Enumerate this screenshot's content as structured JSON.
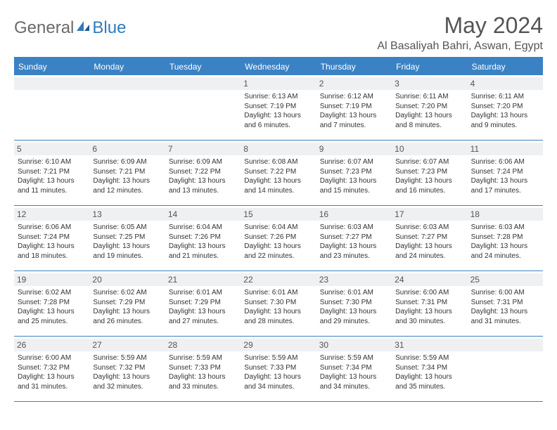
{
  "logo": {
    "part1": "General",
    "part2": "Blue"
  },
  "title": "May 2024",
  "location": "Al Basaliyah Bahri, Aswan, Egypt",
  "colors": {
    "header_bg": "#3b82c4",
    "header_text": "#ffffff",
    "daynum_bg": "#eef0f2",
    "text": "#333333",
    "logo_gray": "#6b6b6b",
    "logo_blue": "#2f7bbf"
  },
  "dow": [
    "Sunday",
    "Monday",
    "Tuesday",
    "Wednesday",
    "Thursday",
    "Friday",
    "Saturday"
  ],
  "weeks": [
    [
      {
        "n": "",
        "sr": "",
        "ss": "",
        "dl": ""
      },
      {
        "n": "",
        "sr": "",
        "ss": "",
        "dl": ""
      },
      {
        "n": "",
        "sr": "",
        "ss": "",
        "dl": ""
      },
      {
        "n": "1",
        "sr": "Sunrise: 6:13 AM",
        "ss": "Sunset: 7:19 PM",
        "dl": "Daylight: 13 hours and 6 minutes."
      },
      {
        "n": "2",
        "sr": "Sunrise: 6:12 AM",
        "ss": "Sunset: 7:19 PM",
        "dl": "Daylight: 13 hours and 7 minutes."
      },
      {
        "n": "3",
        "sr": "Sunrise: 6:11 AM",
        "ss": "Sunset: 7:20 PM",
        "dl": "Daylight: 13 hours and 8 minutes."
      },
      {
        "n": "4",
        "sr": "Sunrise: 6:11 AM",
        "ss": "Sunset: 7:20 PM",
        "dl": "Daylight: 13 hours and 9 minutes."
      }
    ],
    [
      {
        "n": "5",
        "sr": "Sunrise: 6:10 AM",
        "ss": "Sunset: 7:21 PM",
        "dl": "Daylight: 13 hours and 11 minutes."
      },
      {
        "n": "6",
        "sr": "Sunrise: 6:09 AM",
        "ss": "Sunset: 7:21 PM",
        "dl": "Daylight: 13 hours and 12 minutes."
      },
      {
        "n": "7",
        "sr": "Sunrise: 6:09 AM",
        "ss": "Sunset: 7:22 PM",
        "dl": "Daylight: 13 hours and 13 minutes."
      },
      {
        "n": "8",
        "sr": "Sunrise: 6:08 AM",
        "ss": "Sunset: 7:22 PM",
        "dl": "Daylight: 13 hours and 14 minutes."
      },
      {
        "n": "9",
        "sr": "Sunrise: 6:07 AM",
        "ss": "Sunset: 7:23 PM",
        "dl": "Daylight: 13 hours and 15 minutes."
      },
      {
        "n": "10",
        "sr": "Sunrise: 6:07 AM",
        "ss": "Sunset: 7:23 PM",
        "dl": "Daylight: 13 hours and 16 minutes."
      },
      {
        "n": "11",
        "sr": "Sunrise: 6:06 AM",
        "ss": "Sunset: 7:24 PM",
        "dl": "Daylight: 13 hours and 17 minutes."
      }
    ],
    [
      {
        "n": "12",
        "sr": "Sunrise: 6:06 AM",
        "ss": "Sunset: 7:24 PM",
        "dl": "Daylight: 13 hours and 18 minutes."
      },
      {
        "n": "13",
        "sr": "Sunrise: 6:05 AM",
        "ss": "Sunset: 7:25 PM",
        "dl": "Daylight: 13 hours and 19 minutes."
      },
      {
        "n": "14",
        "sr": "Sunrise: 6:04 AM",
        "ss": "Sunset: 7:26 PM",
        "dl": "Daylight: 13 hours and 21 minutes."
      },
      {
        "n": "15",
        "sr": "Sunrise: 6:04 AM",
        "ss": "Sunset: 7:26 PM",
        "dl": "Daylight: 13 hours and 22 minutes."
      },
      {
        "n": "16",
        "sr": "Sunrise: 6:03 AM",
        "ss": "Sunset: 7:27 PM",
        "dl": "Daylight: 13 hours and 23 minutes."
      },
      {
        "n": "17",
        "sr": "Sunrise: 6:03 AM",
        "ss": "Sunset: 7:27 PM",
        "dl": "Daylight: 13 hours and 24 minutes."
      },
      {
        "n": "18",
        "sr": "Sunrise: 6:03 AM",
        "ss": "Sunset: 7:28 PM",
        "dl": "Daylight: 13 hours and 24 minutes."
      }
    ],
    [
      {
        "n": "19",
        "sr": "Sunrise: 6:02 AM",
        "ss": "Sunset: 7:28 PM",
        "dl": "Daylight: 13 hours and 25 minutes."
      },
      {
        "n": "20",
        "sr": "Sunrise: 6:02 AM",
        "ss": "Sunset: 7:29 PM",
        "dl": "Daylight: 13 hours and 26 minutes."
      },
      {
        "n": "21",
        "sr": "Sunrise: 6:01 AM",
        "ss": "Sunset: 7:29 PM",
        "dl": "Daylight: 13 hours and 27 minutes."
      },
      {
        "n": "22",
        "sr": "Sunrise: 6:01 AM",
        "ss": "Sunset: 7:30 PM",
        "dl": "Daylight: 13 hours and 28 minutes."
      },
      {
        "n": "23",
        "sr": "Sunrise: 6:01 AM",
        "ss": "Sunset: 7:30 PM",
        "dl": "Daylight: 13 hours and 29 minutes."
      },
      {
        "n": "24",
        "sr": "Sunrise: 6:00 AM",
        "ss": "Sunset: 7:31 PM",
        "dl": "Daylight: 13 hours and 30 minutes."
      },
      {
        "n": "25",
        "sr": "Sunrise: 6:00 AM",
        "ss": "Sunset: 7:31 PM",
        "dl": "Daylight: 13 hours and 31 minutes."
      }
    ],
    [
      {
        "n": "26",
        "sr": "Sunrise: 6:00 AM",
        "ss": "Sunset: 7:32 PM",
        "dl": "Daylight: 13 hours and 31 minutes."
      },
      {
        "n": "27",
        "sr": "Sunrise: 5:59 AM",
        "ss": "Sunset: 7:32 PM",
        "dl": "Daylight: 13 hours and 32 minutes."
      },
      {
        "n": "28",
        "sr": "Sunrise: 5:59 AM",
        "ss": "Sunset: 7:33 PM",
        "dl": "Daylight: 13 hours and 33 minutes."
      },
      {
        "n": "29",
        "sr": "Sunrise: 5:59 AM",
        "ss": "Sunset: 7:33 PM",
        "dl": "Daylight: 13 hours and 34 minutes."
      },
      {
        "n": "30",
        "sr": "Sunrise: 5:59 AM",
        "ss": "Sunset: 7:34 PM",
        "dl": "Daylight: 13 hours and 34 minutes."
      },
      {
        "n": "31",
        "sr": "Sunrise: 5:59 AM",
        "ss": "Sunset: 7:34 PM",
        "dl": "Daylight: 13 hours and 35 minutes."
      },
      {
        "n": "",
        "sr": "",
        "ss": "",
        "dl": ""
      }
    ]
  ]
}
